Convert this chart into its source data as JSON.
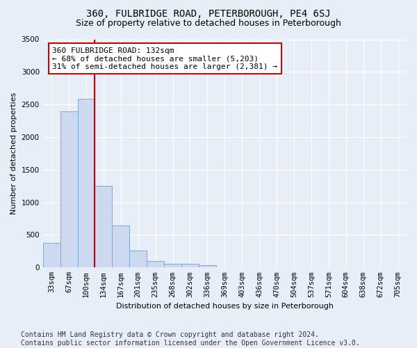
{
  "title": "360, FULBRIDGE ROAD, PETERBOROUGH, PE4 6SJ",
  "subtitle": "Size of property relative to detached houses in Peterborough",
  "xlabel": "Distribution of detached houses by size in Peterborough",
  "ylabel": "Number of detached properties",
  "categories": [
    "33sqm",
    "67sqm",
    "100sqm",
    "134sqm",
    "167sqm",
    "201sqm",
    "235sqm",
    "268sqm",
    "302sqm",
    "336sqm",
    "369sqm",
    "403sqm",
    "436sqm",
    "470sqm",
    "504sqm",
    "537sqm",
    "571sqm",
    "604sqm",
    "638sqm",
    "672sqm",
    "705sqm"
  ],
  "bar_values": [
    380,
    2390,
    2590,
    1250,
    640,
    255,
    95,
    60,
    55,
    35,
    0,
    0,
    0,
    0,
    0,
    0,
    0,
    0,
    0,
    0,
    0
  ],
  "bar_color": "#ccd9f0",
  "bar_edge_color": "#7aaad4",
  "vline_color": "#cc0000",
  "annotation_text": "360 FULBRIDGE ROAD: 132sqm\n← 68% of detached houses are smaller (5,203)\n31% of semi-detached houses are larger (2,381) →",
  "annotation_box_color": "#ffffff",
  "annotation_box_edge_color": "#cc0000",
  "ylim": [
    0,
    3500
  ],
  "yticks": [
    0,
    500,
    1000,
    1500,
    2000,
    2500,
    3000,
    3500
  ],
  "footer": "Contains HM Land Registry data © Crown copyright and database right 2024.\nContains public sector information licensed under the Open Government Licence v3.0.",
  "background_color": "#e8eef8",
  "plot_background_color": "#e8eef8",
  "grid_color": "#ffffff",
  "title_fontsize": 10,
  "subtitle_fontsize": 9,
  "footer_fontsize": 7,
  "axis_label_fontsize": 8,
  "tick_fontsize": 7.5
}
